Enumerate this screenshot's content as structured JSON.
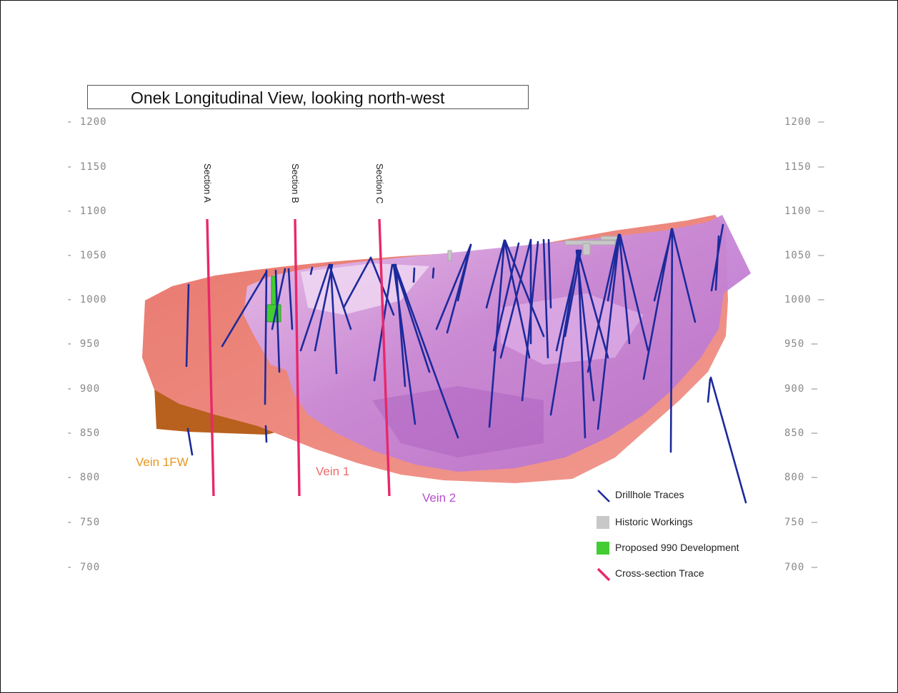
{
  "title": "Onek Longitudinal View, looking north-west",
  "elevation_axis": {
    "labels": [
      "1200",
      "1150",
      "1100",
      "1050",
      "1000",
      "950",
      "900",
      "850",
      "800",
      "750",
      "700"
    ]
  },
  "sections": [
    {
      "label": "Section A"
    },
    {
      "label": "Section B"
    },
    {
      "label": "Section C"
    }
  ],
  "veins": [
    {
      "label": "Vein 1FW",
      "color": "#e8961e"
    },
    {
      "label": "Vein 1",
      "color": "#ee6b6b"
    },
    {
      "label": "Vein 2",
      "color": "#b84fd0"
    }
  ],
  "legend": [
    {
      "label": "Drillhole Traces",
      "icon": "blue-line",
      "color": "#1c2a9c"
    },
    {
      "label": "Historic Workings",
      "icon": "grey-square",
      "color": "#c8c8c8"
    },
    {
      "label": "Proposed 990 Development",
      "icon": "green-square",
      "color": "#44cc33"
    },
    {
      "label": "Cross-section Trace",
      "icon": "red-line",
      "color": "#e8286a"
    }
  ],
  "colors": {
    "vein1fw": "#b8601e",
    "vein1": "#f08b83",
    "vein2": "#c98ad8",
    "drillhole": "#1c2a9c",
    "section": "#e8286a"
  }
}
